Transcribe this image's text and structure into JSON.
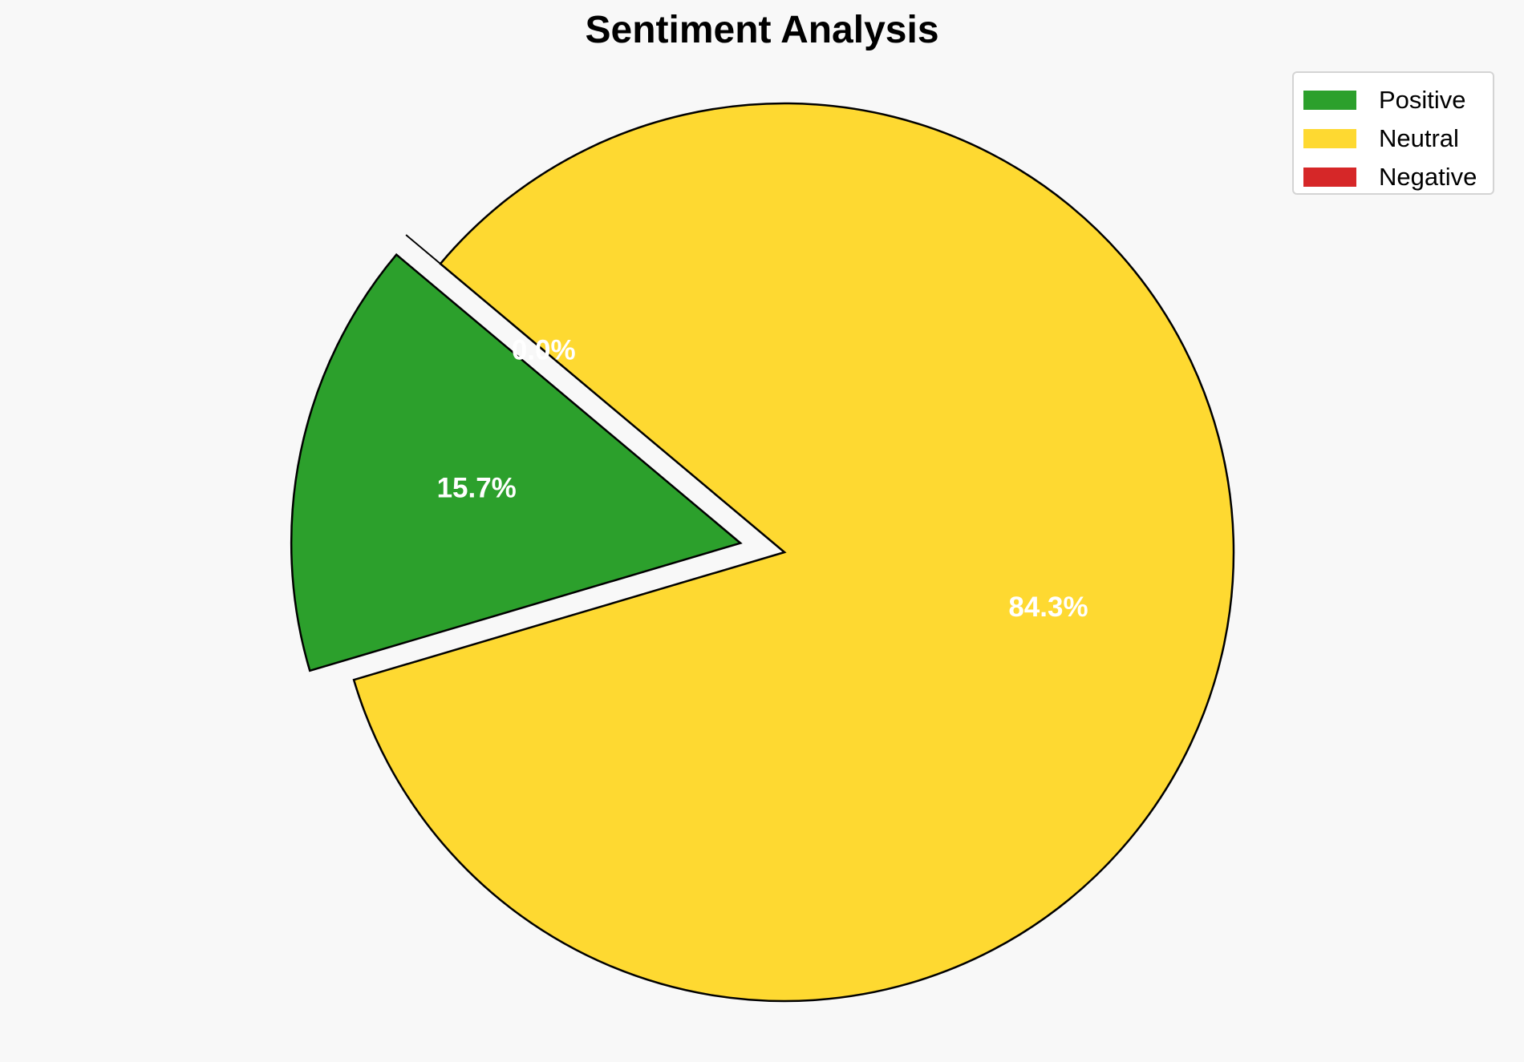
{
  "chart_data": {
    "type": "pie",
    "title": "Sentiment Analysis",
    "slices": [
      {
        "label": "Positive",
        "value": 15.7,
        "pct_label": "15.7%",
        "color": "#2ca02c",
        "exploded": true
      },
      {
        "label": "Neutral",
        "value": 84.3,
        "pct_label": "84.3%",
        "color": "#fed931",
        "exploded": false
      },
      {
        "label": "Negative",
        "value": 0.0,
        "pct_label": "0.0%",
        "color": "#d62728",
        "exploded": true
      }
    ],
    "start_angle": 140,
    "legend_position": "upper-right",
    "edge_color": "#000000"
  }
}
